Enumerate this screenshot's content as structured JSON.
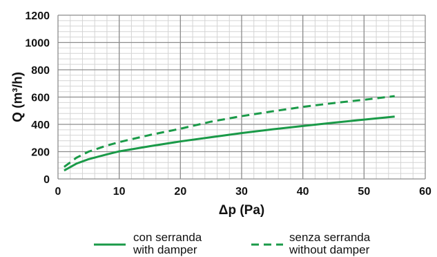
{
  "chart_data": {
    "type": "line",
    "xlabel": "Δp (Pa)",
    "ylabel": "Q (m³/h)",
    "xlim": [
      0,
      60
    ],
    "ylim": [
      0,
      1200
    ],
    "x_ticks": [
      0,
      10,
      20,
      30,
      40,
      50,
      60
    ],
    "y_ticks": [
      0,
      200,
      400,
      600,
      800,
      1000,
      1200
    ],
    "x_minor_step": 2,
    "y_minor_step": 40,
    "grid": true,
    "legend_position": "bottom",
    "line_color": "#1a9a48",
    "series": [
      {
        "name": "con serranda",
        "name_2": "with damper",
        "style": "solid",
        "x": [
          1,
          3,
          5,
          8,
          10,
          15,
          20,
          25,
          30,
          35,
          40,
          45,
          50,
          55
        ],
        "y": [
          62,
          112,
          145,
          180,
          202,
          240,
          275,
          306,
          336,
          363,
          388,
          412,
          435,
          457
        ]
      },
      {
        "name": "senza serranda",
        "name_2": "without damper",
        "style": "dashed",
        "x": [
          1,
          3,
          5,
          8,
          10,
          15,
          20,
          25,
          30,
          35,
          40,
          45,
          50,
          55
        ],
        "y": [
          88,
          155,
          200,
          245,
          270,
          322,
          368,
          420,
          460,
          495,
          528,
          556,
          580,
          607
        ]
      }
    ]
  }
}
